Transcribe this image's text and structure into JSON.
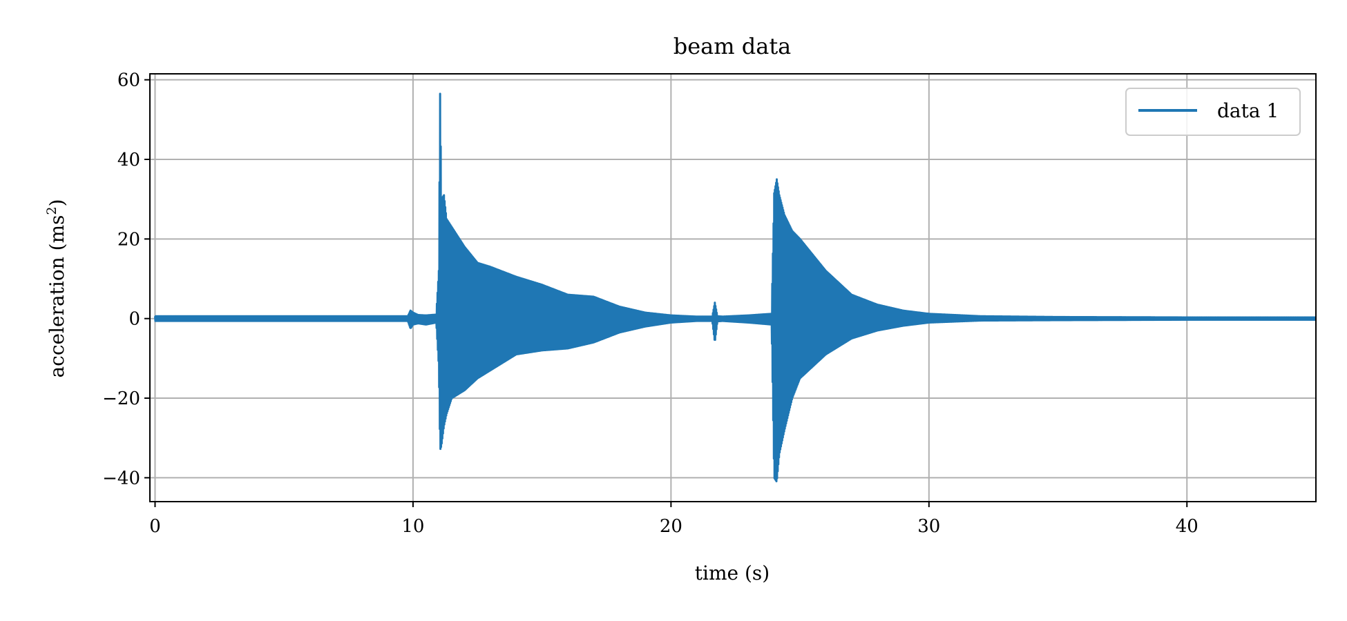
{
  "chart_data": {
    "type": "line",
    "title": "beam data",
    "xlabel": "time (s)",
    "ylabel": "acceleration (ms",
    "ylabel_sup": "2",
    "ylabel_end": ")",
    "xlim": [
      -0.2,
      45
    ],
    "ylim": [
      -46,
      61.5
    ],
    "xticks": [
      0,
      10,
      20,
      30,
      40
    ],
    "xtick_labels": [
      "0",
      "10",
      "20",
      "30",
      "40"
    ],
    "yticks": [
      -40,
      -20,
      0,
      20,
      40,
      60
    ],
    "ytick_labels": [
      "−40",
      "−20",
      "0",
      "20",
      "40",
      "60"
    ],
    "grid": true,
    "legend_position": "top-right",
    "color": "#1f77b4",
    "series": [
      {
        "name": "data 1",
        "envelope": {
          "t": [
            0,
            9.8,
            9.9,
            10.0,
            10.2,
            10.5,
            10.9,
            11.0,
            11.05,
            11.1,
            11.2,
            11.3,
            11.5,
            12.0,
            12.5,
            13.0,
            14.0,
            15.0,
            16.0,
            17.0,
            18.0,
            19.0,
            20.0,
            21.0,
            21.6,
            21.7,
            21.8,
            22.0,
            23.0,
            23.9,
            24.0,
            24.1,
            24.2,
            24.4,
            24.7,
            25.0,
            25.5,
            26.0,
            27.0,
            28.0,
            29.0,
            30.0,
            32.0,
            35.0,
            40.0,
            45.0
          ],
          "upper": [
            0.6,
            0.6,
            2.0,
            1.5,
            0.9,
            0.8,
            1.0,
            12.0,
            56.5,
            30.0,
            31.0,
            25.0,
            23.0,
            18.0,
            14.0,
            13.0,
            10.5,
            8.5,
            6.0,
            5.5,
            3.0,
            1.5,
            0.8,
            0.5,
            0.5,
            4.0,
            0.6,
            0.5,
            0.8,
            1.2,
            31.5,
            35.0,
            31.0,
            26.0,
            22.0,
            20.0,
            16.0,
            12.0,
            6.0,
            3.5,
            2.0,
            1.2,
            0.6,
            0.4,
            0.3,
            0.3
          ],
          "lower": [
            -0.6,
            -0.6,
            -2.5,
            -1.5,
            -1.2,
            -1.5,
            -1.0,
            -12.0,
            -33.0,
            -32.0,
            -27.0,
            -24.0,
            -20.0,
            -18.0,
            -15.0,
            -13.0,
            -9.0,
            -8.0,
            -7.5,
            -6.0,
            -3.5,
            -2.0,
            -1.0,
            -0.6,
            -0.6,
            -6.0,
            -0.7,
            -0.6,
            -1.0,
            -1.5,
            -40.0,
            -41.0,
            -34.0,
            -28.0,
            -20.0,
            -15.0,
            -12.0,
            -9.0,
            -5.0,
            -3.0,
            -1.8,
            -1.0,
            -0.5,
            -0.4,
            -0.3,
            -0.3
          ]
        }
      }
    ]
  }
}
